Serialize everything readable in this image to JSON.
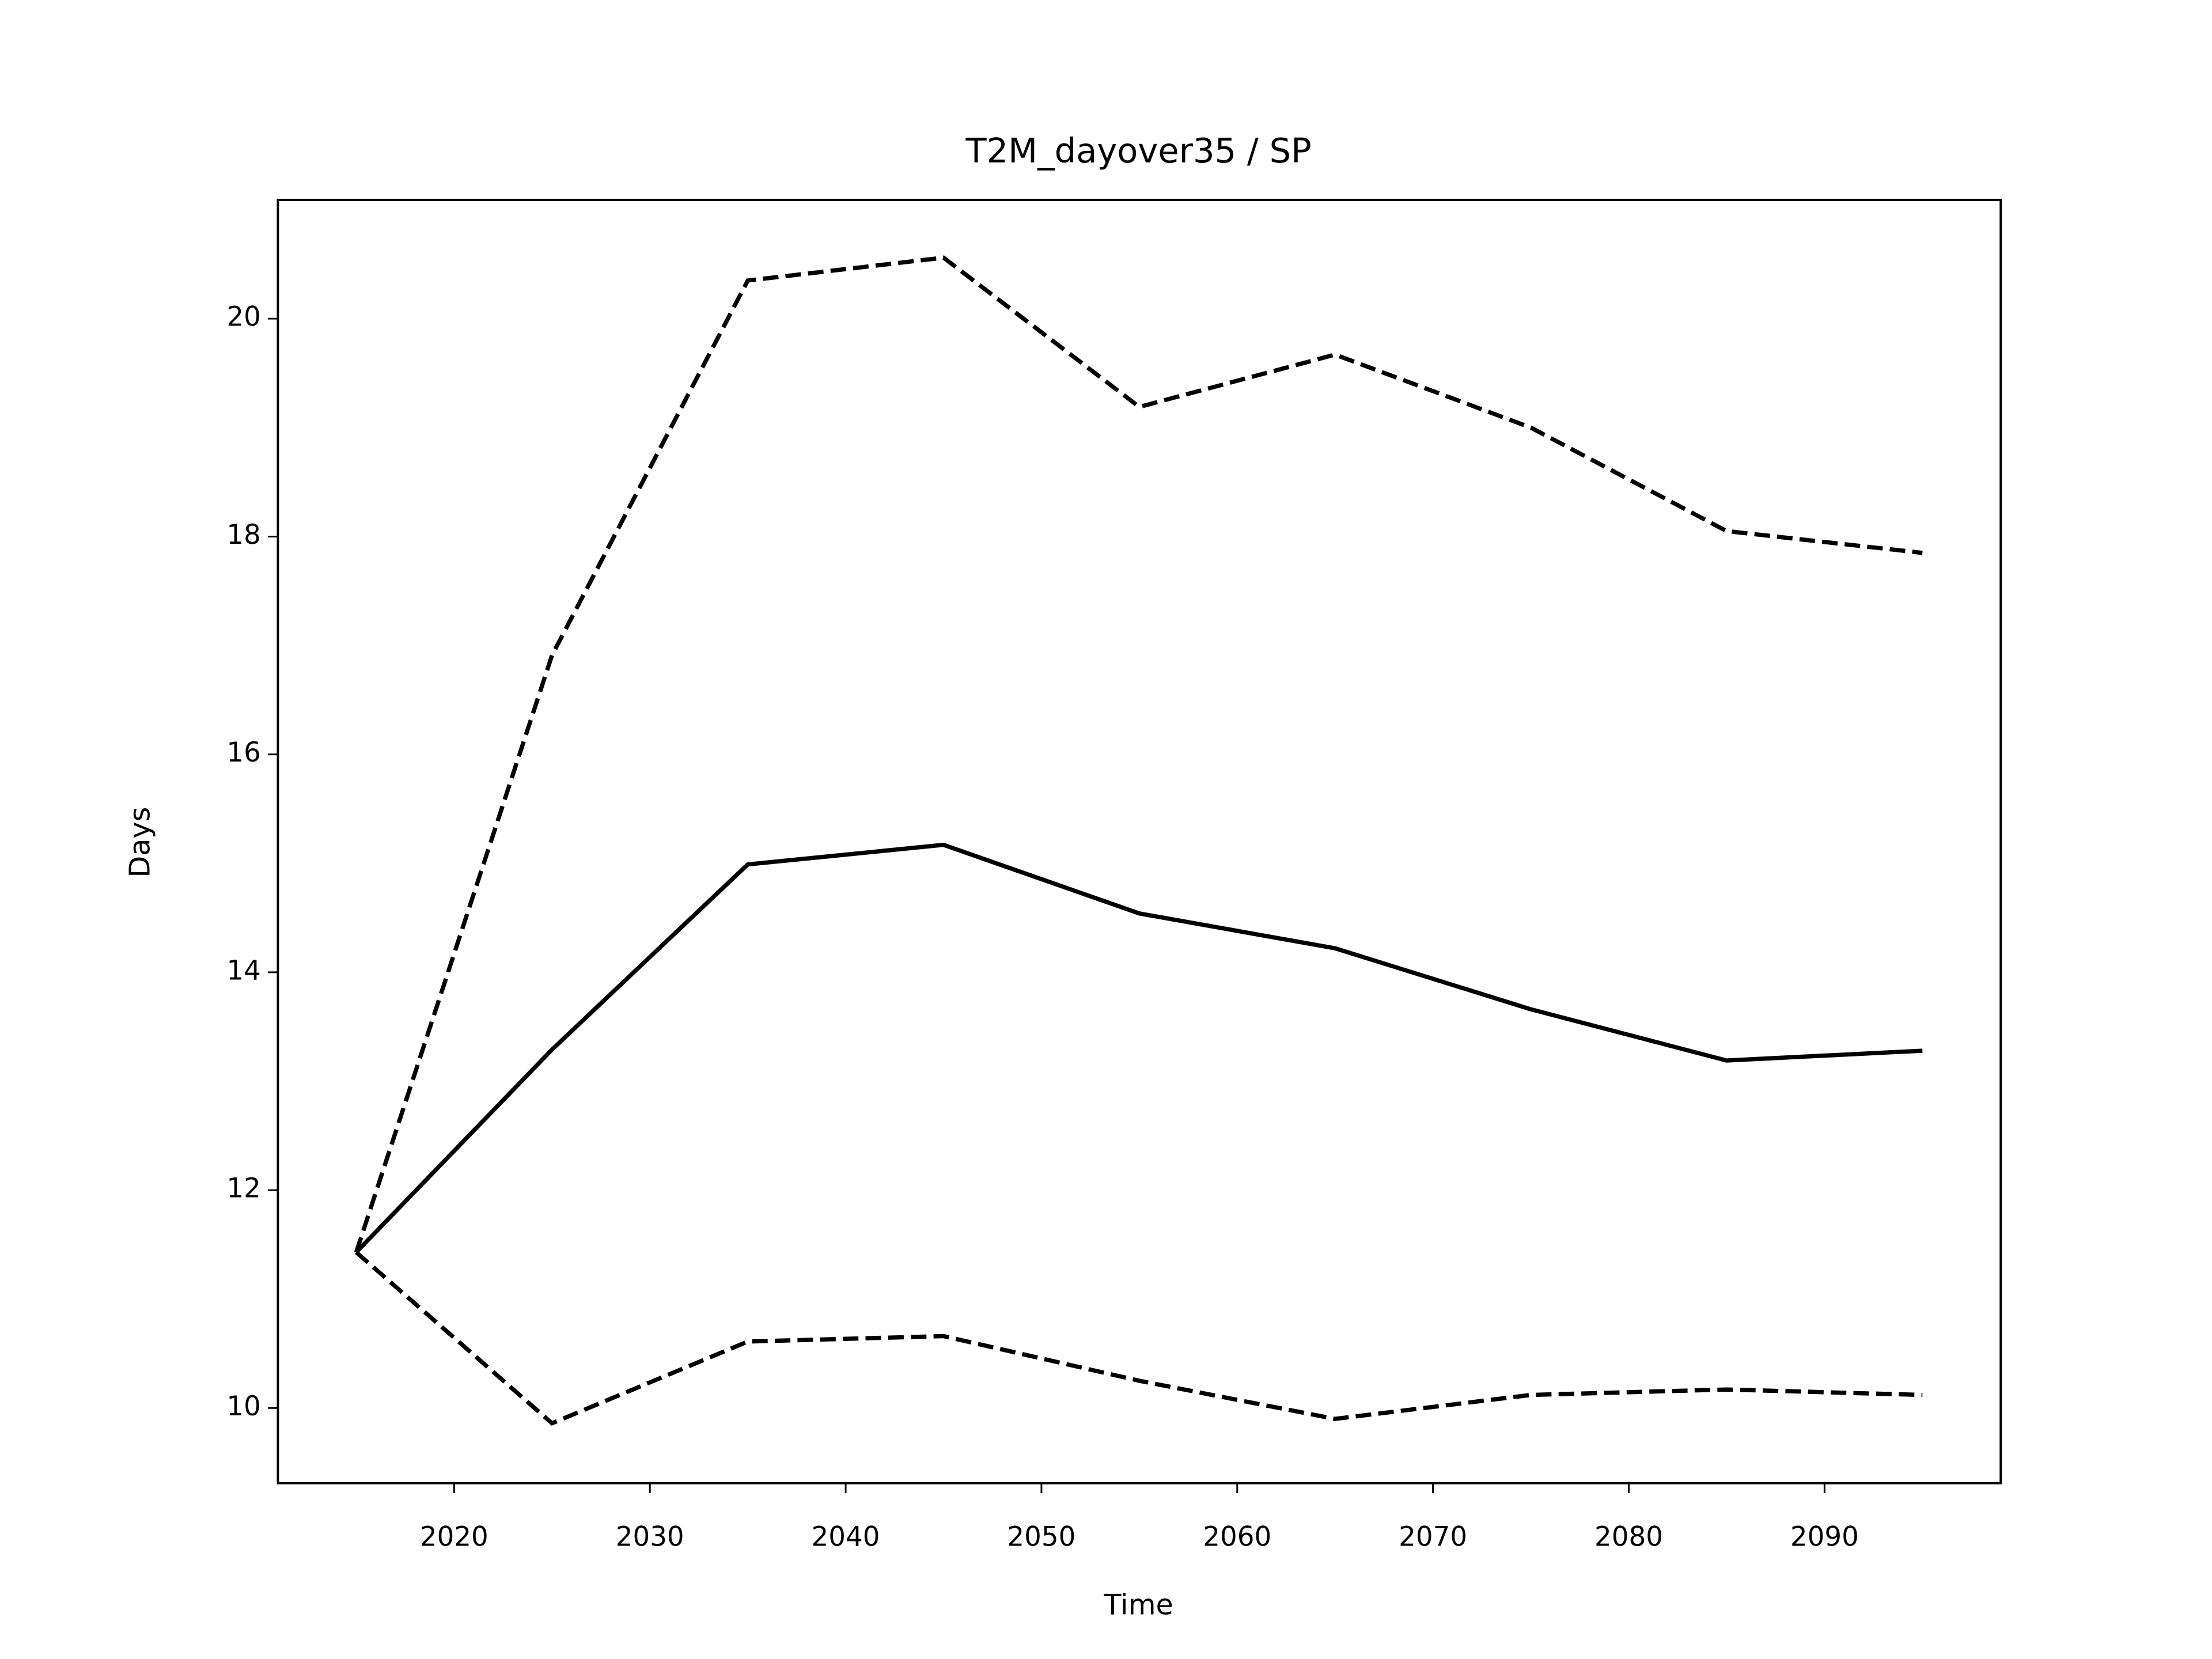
{
  "chart_data": {
    "type": "line",
    "title": "T2M_dayover35 / SP",
    "xlabel": "Time",
    "ylabel": "Days",
    "x": [
      2015,
      2025,
      2035,
      2045,
      2055,
      2065,
      2075,
      2085,
      2095
    ],
    "series": [
      {
        "color": "#000000",
        "linestyle": "solid",
        "values": [
          11.43,
          13.29,
          14.99,
          15.17,
          14.54,
          14.22,
          13.66,
          13.19,
          13.28
        ]
      },
      {
        "color": "#000000",
        "linestyle": "dashed",
        "values": [
          11.43,
          16.91,
          20.35,
          20.56,
          19.19,
          19.67,
          19.0,
          18.05,
          17.85
        ]
      },
      {
        "color": "#000000",
        "linestyle": "dashed",
        "values": [
          11.43,
          9.86,
          10.61,
          10.66,
          10.25,
          9.9,
          10.12,
          10.17,
          10.12
        ]
      }
    ],
    "xlim": [
      2011,
      2099
    ],
    "xticks": [
      2020,
      2030,
      2040,
      2050,
      2060,
      2070,
      2080,
      2090
    ],
    "ylim": [
      9.31,
      21.09
    ],
    "yticks": [
      10,
      12,
      14,
      16,
      18,
      20
    ],
    "grid": false
  }
}
